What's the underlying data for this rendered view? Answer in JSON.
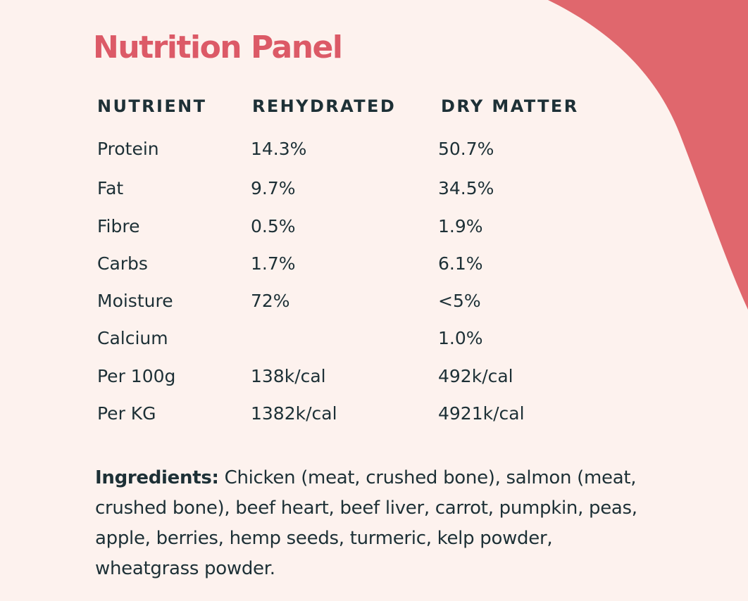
{
  "colors": {
    "background": "#FDF2EE",
    "accent": "#E0676D",
    "title": "#DC5A67",
    "text": "#1D3036"
  },
  "title": "Nutrition Panel",
  "table": {
    "headers": [
      "NUTRIENT",
      "REHYDRATED",
      "DRY MATTER"
    ],
    "rows": [
      [
        "Protein",
        "14.3%",
        "50.7%"
      ],
      [
        "Fat",
        "9.7%",
        "34.5%"
      ],
      [
        "Fibre",
        "0.5%",
        "1.9%"
      ],
      [
        "Carbs",
        "1.7%",
        "6.1%"
      ],
      [
        "Moisture",
        "72%",
        "<5%"
      ],
      [
        "Calcium",
        "",
        "1.0%"
      ],
      [
        "Per 100g",
        "138k/cal",
        "492k/cal"
      ],
      [
        "Per KG",
        "1382k/cal",
        "4921k/cal"
      ]
    ]
  },
  "ingredients": {
    "label": "Ingredients:",
    "text": " Chicken (meat, crushed bone), salmon (meat, crushed bone), beef heart, beef liver, carrot, pumpkin, peas, apple, berries, hemp seeds, turmeric, kelp powder, wheatgrass powder."
  }
}
